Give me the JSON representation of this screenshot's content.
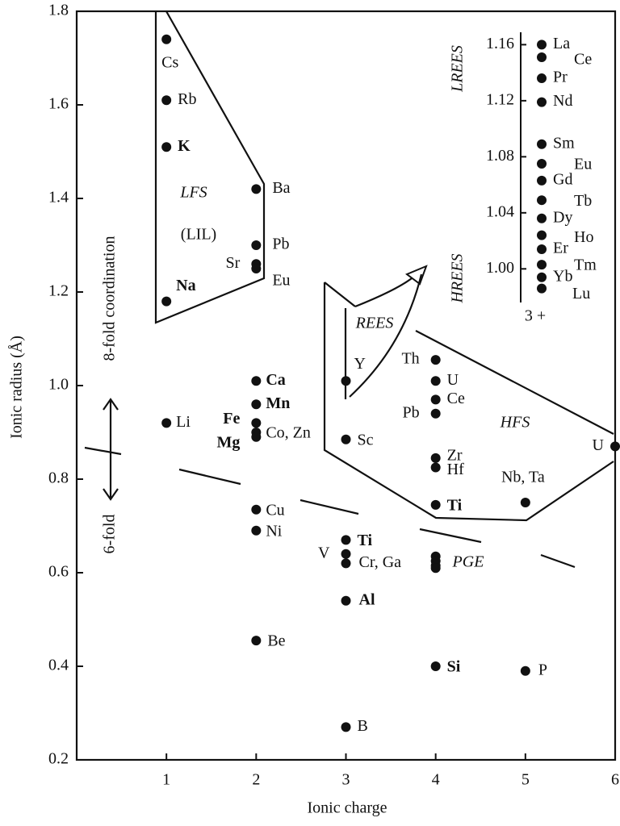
{
  "chart_data": [
    {
      "type": "scatter",
      "x_label": "Ionic charge",
      "y_label": "Ionic radius (Å)",
      "xlim": [
        0,
        6
      ],
      "xticks": [
        1,
        2,
        3,
        4,
        5,
        6
      ],
      "ylim": [
        0.2,
        1.8
      ],
      "yticks": [
        0.2,
        0.4,
        0.6,
        0.8,
        {
          "value": 1,
          "label": "1.0"
        },
        1.2,
        1.4,
        1.6,
        1.8
      ],
      "annotations": [
        "LFS",
        "(LIL)",
        "REES",
        "HFS",
        "PGE",
        "8-fold coordination",
        "6-fold"
      ],
      "points": [
        {
          "label": "Cs",
          "x": 1,
          "y": 1.74
        },
        {
          "label": "Rb",
          "x": 1,
          "y": 1.61
        },
        {
          "label": "K",
          "x": 1,
          "y": 1.51,
          "bold": true
        },
        {
          "label": "Na",
          "x": 1,
          "y": 1.18,
          "bold": true
        },
        {
          "label": "Li",
          "x": 1,
          "y": 0.92
        },
        {
          "label": "Ba",
          "x": 2,
          "y": 1.42
        },
        {
          "label": "Pb",
          "x": 2,
          "y": 1.3
        },
        {
          "label": "Sr",
          "x": 2,
          "y": 1.26
        },
        {
          "label": "Eu",
          "x": 2,
          "y": 1.25
        },
        {
          "label": "Ca",
          "x": 2,
          "y": 1.01,
          "bold": true
        },
        {
          "label": "Mn",
          "x": 2,
          "y": 0.96,
          "bold": true
        },
        {
          "label": "Fe",
          "x": 2,
          "y": 0.92,
          "bold": true
        },
        {
          "label": "Co, Zn",
          "x": 2,
          "y": 0.9
        },
        {
          "label": "Mg",
          "x": 2,
          "y": 0.89,
          "bold": true
        },
        {
          "label": "Cu",
          "x": 2,
          "y": 0.735
        },
        {
          "label": "Ni",
          "x": 2,
          "y": 0.69
        },
        {
          "label": "Be",
          "x": 2,
          "y": 0.455
        },
        {
          "label": "Y",
          "x": 3,
          "y": 1.01
        },
        {
          "label": "Sc",
          "x": 3,
          "y": 0.885
        },
        {
          "label": "Ti",
          "x": 3,
          "y": 0.67,
          "bold": true
        },
        {
          "label": "V",
          "x": 3,
          "y": 0.64
        },
        {
          "label": "Cr, Ga",
          "x": 3,
          "y": 0.62
        },
        {
          "label": "Al",
          "x": 3,
          "y": 0.54,
          "bold": true
        },
        {
          "label": "B",
          "x": 3,
          "y": 0.27
        },
        {
          "label": "Th",
          "x": 4,
          "y": 1.055
        },
        {
          "label": "U",
          "x": 4,
          "y": 1.01
        },
        {
          "label": "Ce",
          "x": 4,
          "y": 0.97
        },
        {
          "label": "Pb",
          "x": 4,
          "y": 0.94
        },
        {
          "label": "Zr",
          "x": 4,
          "y": 0.845
        },
        {
          "label": "Hf",
          "x": 4,
          "y": 0.825
        },
        {
          "label": "Ti",
          "x": 4,
          "y": 0.745,
          "bold": true
        },
        {
          "x": 4,
          "y": 0.635
        },
        {
          "x": 4,
          "y": 0.625
        },
        {
          "x": 4,
          "y": 0.615
        },
        {
          "x": 4,
          "y": 0.61
        },
        {
          "label": "Si",
          "x": 4,
          "y": 0.4,
          "bold": true
        },
        {
          "label": "Nb, Ta",
          "x": 5,
          "y": 0.75
        },
        {
          "label": "P",
          "x": 5,
          "y": 0.39
        },
        {
          "label": "U",
          "x": 6,
          "y": 0.87
        }
      ]
    },
    {
      "type": "strip",
      "x_label": "3 +",
      "annotations": [
        "LREES",
        "HREES"
      ],
      "ylim": [
        0.976,
        1.17
      ],
      "yticks": [
        {
          "value": 1,
          "label": "1.00"
        },
        1.04,
        1.08,
        1.12,
        1.16
      ],
      "points": [
        {
          "label": "La",
          "y": 1.16
        },
        {
          "label": "Ce",
          "y": 1.151
        },
        {
          "label": "Pr",
          "y": 1.136
        },
        {
          "label": "Nd",
          "y": 1.119
        },
        {
          "label": "Sm",
          "y": 1.089
        },
        {
          "label": "Eu",
          "y": 1.075
        },
        {
          "label": "Gd",
          "y": 1.063
        },
        {
          "label": "Tb",
          "y": 1.049
        },
        {
          "label": "Dy",
          "y": 1.036
        },
        {
          "label": "Ho",
          "y": 1.024
        },
        {
          "label": "Er",
          "y": 1.014
        },
        {
          "label": "Tm",
          "y": 1.003
        },
        {
          "label": "Yb",
          "y": 0.994
        },
        {
          "label": "Lu",
          "y": 0.986
        }
      ]
    }
  ]
}
